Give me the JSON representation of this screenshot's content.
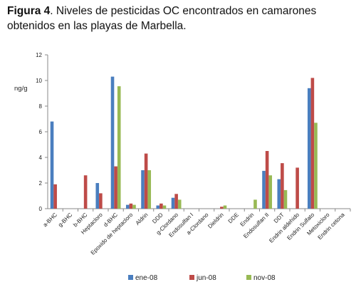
{
  "caption": {
    "figure_label": "Figura 4",
    "text": ". Niveles de pesticidas OC encontrados en camarones obtenidos en las playas de Marbella."
  },
  "chart_data": {
    "type": "bar",
    "title": "",
    "xlabel": "",
    "ylabel": "ng/g",
    "ylim": [
      0,
      12
    ],
    "yticks": [
      0,
      2,
      4,
      6,
      8,
      10,
      12
    ],
    "grid": false,
    "legend_position": "bottom",
    "categories": [
      "a-BHC",
      "g-BHC",
      "b-BHC",
      "Heptacloro",
      "d-BHC",
      "Epoxido de heptacloro",
      "Aldrin",
      "DDD",
      "g-Clordano",
      "Endosulfan I",
      "a-Clordano",
      "Dieldrin",
      "DDE",
      "Endrin",
      "Endosulfan II",
      "DDT",
      "Endrin aldehido",
      "Endrin Sulfato",
      "Metoxicloro",
      "Endrin cetona"
    ],
    "series": [
      {
        "name": "ene-08",
        "color": "#4a7ebf",
        "values": [
          6.8,
          0,
          0,
          2.0,
          10.3,
          0.3,
          3.0,
          0.25,
          0.85,
          0,
          0,
          0,
          0,
          0,
          2.95,
          2.3,
          0,
          9.4,
          0,
          0
        ]
      },
      {
        "name": "jun-08",
        "color": "#be4b48",
        "values": [
          1.9,
          0,
          2.6,
          1.2,
          3.3,
          0.4,
          4.3,
          0.4,
          1.15,
          0,
          0,
          0.15,
          0,
          0,
          4.5,
          3.55,
          3.2,
          10.2,
          0,
          0
        ]
      },
      {
        "name": "nov-08",
        "color": "#98b954",
        "values": [
          0,
          0,
          0,
          0,
          9.55,
          0.3,
          3.0,
          0.25,
          0.7,
          0,
          0,
          0.25,
          0,
          0.7,
          2.6,
          1.45,
          0,
          6.7,
          0,
          0
        ]
      }
    ]
  }
}
